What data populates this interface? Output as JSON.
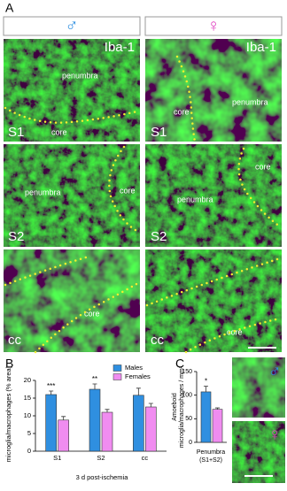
{
  "panel_labels": [
    "A",
    "B",
    "C"
  ],
  "panel_a": {
    "headers": [
      "♂",
      "♀"
    ],
    "images": [
      {
        "labels": [
          "Iba-1",
          "penumbra",
          "core",
          "S1"
        ]
      },
      {
        "labels": [
          "Iba-1",
          "core",
          "penumbra",
          "S1"
        ]
      },
      {
        "labels": [
          "penumbra",
          "core",
          "S2"
        ]
      },
      {
        "labels": [
          "core",
          "penumbra",
          "S2"
        ]
      },
      {
        "labels": [
          "core",
          "cc"
        ]
      },
      {
        "labels": [
          "core",
          "cc"
        ]
      }
    ]
  },
  "panel_c_images": {
    "symbols": [
      "♂",
      "♀"
    ]
  },
  "chart_data": [
    {
      "type": "bar",
      "ylabel": "microglia/macrophages (% area)",
      "xlabel": "3 d post-ischemia",
      "categories": [
        "S1",
        "S2",
        "cc"
      ],
      "series": [
        {
          "name": "Males",
          "color": "#2f8fe0",
          "values": [
            16,
            17.5,
            15.8
          ],
          "errors": [
            1,
            1.5,
            2
          ]
        },
        {
          "name": "Females",
          "color": "#f08cf0",
          "values": [
            8.8,
            11,
            12.5
          ],
          "errors": [
            1,
            0.8,
            1
          ]
        }
      ],
      "significance": [
        "***",
        "**",
        null
      ],
      "ylim": [
        0,
        20
      ],
      "yticks": [
        0,
        5,
        10,
        15,
        20
      ]
    },
    {
      "type": "bar",
      "ylabel": [
        "Amoeboid",
        "microglia/macrophages / mm²"
      ],
      "categories": [
        [
          "Penumbra",
          "(S1+S2)"
        ]
      ],
      "series": [
        {
          "color": "#2f8fe0",
          "values": [
            107
          ],
          "errors": [
            12
          ]
        },
        {
          "color": "#f08cf0",
          "values": [
            70
          ],
          "errors": [
            3
          ]
        }
      ],
      "significance": [
        "*"
      ],
      "ylim": [
        0,
        150
      ],
      "yticks": [
        0,
        50,
        100,
        150
      ]
    }
  ]
}
